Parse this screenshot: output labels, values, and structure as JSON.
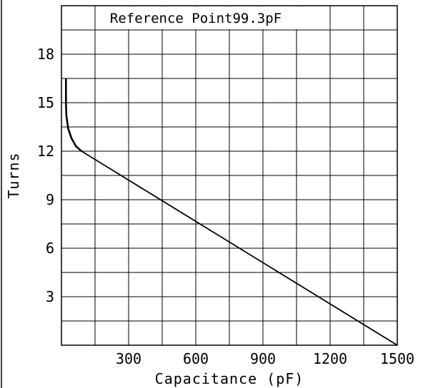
{
  "chart_data": {
    "type": "line",
    "xlabel": "Capacitance (pF)",
    "ylabel": "Turns",
    "annotation": "Reference Point99.3pF",
    "xlim": [
      0,
      1500
    ],
    "ylim": [
      0,
      21
    ],
    "x_ticks": [
      300,
      600,
      900,
      1200,
      1500
    ],
    "y_ticks": [
      3,
      6,
      9,
      12,
      15,
      18
    ],
    "grid": true,
    "series": [
      {
        "x": [
          20,
          20,
          22,
          30,
          45,
          65,
          90,
          1500
        ],
        "y": [
          16.5,
          15.0,
          14.2,
          13.4,
          12.8,
          12.3,
          12.0,
          0
        ]
      }
    ]
  }
}
